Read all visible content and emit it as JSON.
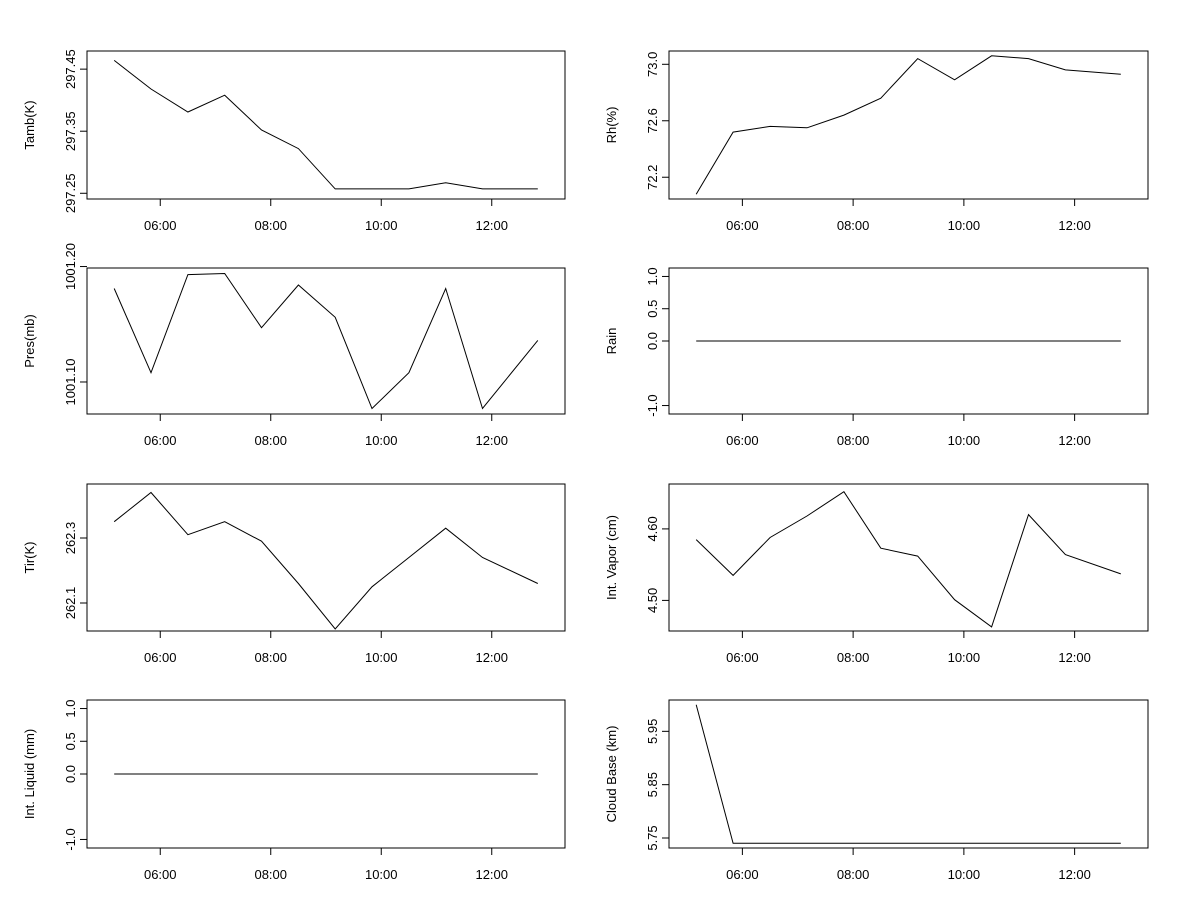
{
  "chart_data": [
    {
      "type": "line",
      "title": "",
      "xlabel": "",
      "ylabel": "Tamb(K)",
      "x": [
        "05:10",
        "05:50",
        "06:30",
        "07:10",
        "07:50",
        "08:30",
        "09:10",
        "09:50",
        "10:30",
        "11:10",
        "11:50",
        "12:50"
      ],
      "y": [
        297.464,
        297.418,
        297.381,
        297.408,
        297.352,
        297.322,
        297.257,
        297.257,
        297.257,
        297.267,
        297.257,
        297.257
      ],
      "x_ticks": [
        "06:00",
        "08:00",
        "10:00",
        "12:00"
      ],
      "y_ticks": [
        "297.25",
        "297.35",
        "297.45"
      ],
      "ylim": [
        297.244,
        297.476
      ],
      "grid": false
    },
    {
      "type": "line",
      "title": "",
      "xlabel": "",
      "ylabel": "Rh(%)",
      "x": [
        "05:10",
        "05:50",
        "06:30",
        "07:10",
        "07:50",
        "08:30",
        "09:10",
        "09:50",
        "10:30",
        "11:10",
        "11:50",
        "12:50"
      ],
      "y": [
        72.08,
        72.52,
        72.56,
        72.55,
        72.64,
        72.76,
        73.04,
        72.89,
        73.06,
        73.04,
        72.96,
        72.93
      ],
      "x_ticks": [
        "06:00",
        "08:00",
        "10:00",
        "12:00"
      ],
      "y_ticks": [
        "72.2",
        "72.6",
        "73.0"
      ],
      "ylim": [
        72.06,
        73.08
      ],
      "grid": false
    },
    {
      "type": "line",
      "title": "",
      "xlabel": "",
      "ylabel": "Pres(mb)",
      "x": [
        "05:10",
        "05:50",
        "06:30",
        "07:10",
        "07:50",
        "08:30",
        "09:10",
        "09:50",
        "10:30",
        "11:10",
        "11:50",
        "12:50"
      ],
      "y": [
        1001.181,
        1001.108,
        1001.193,
        1001.194,
        1001.147,
        1001.184,
        1001.156,
        1001.077,
        1001.108,
        1001.181,
        1001.077,
        1001.136
      ],
      "x_ticks": [
        "06:00",
        "08:00",
        "10:00",
        "12:00"
      ],
      "y_ticks": [
        "1001.10",
        "1001.20"
      ],
      "ylim": [
        1001.074,
        1001.197
      ],
      "grid": false
    },
    {
      "type": "line",
      "title": "",
      "xlabel": "",
      "ylabel": "Rain",
      "x": [
        "05:10",
        "12:50"
      ],
      "y": [
        0.0,
        0.0
      ],
      "x_ticks": [
        "06:00",
        "08:00",
        "10:00",
        "12:00"
      ],
      "y_ticks": [
        "-1.0",
        "0.0",
        "0.5",
        "1.0"
      ],
      "ylim": [
        -1.1,
        1.1
      ],
      "grid": false
    },
    {
      "type": "line",
      "title": "",
      "xlabel": "",
      "ylabel": "Tir(K)",
      "x": [
        "05:10",
        "05:50",
        "06:30",
        "07:10",
        "07:50",
        "08:30",
        "09:10",
        "09:50",
        "10:30",
        "11:10",
        "11:50",
        "12:50"
      ],
      "y": [
        262.35,
        262.44,
        262.31,
        262.35,
        262.29,
        262.16,
        262.02,
        262.15,
        262.24,
        262.33,
        262.24,
        262.16
      ],
      "x_ticks": [
        "06:00",
        "08:00",
        "10:00",
        "12:00"
      ],
      "y_ticks": [
        "262.1",
        "262.3"
      ],
      "ylim": [
        262.02,
        262.46
      ],
      "grid": false
    },
    {
      "type": "line",
      "title": "",
      "xlabel": "",
      "ylabel": "Int. Vapor (cm)",
      "x": [
        "05:10",
        "05:50",
        "06:30",
        "07:10",
        "07:50",
        "08:30",
        "09:10",
        "09:50",
        "10:30",
        "11:10",
        "11:50",
        "12:50"
      ],
      "y": [
        4.585,
        4.535,
        4.588,
        4.618,
        4.652,
        4.573,
        4.562,
        4.501,
        4.463,
        4.62,
        4.564,
        4.537
      ],
      "x_ticks": [
        "06:00",
        "08:00",
        "10:00",
        "12:00"
      ],
      "y_ticks": [
        "4.50",
        "4.60"
      ],
      "ylim": [
        4.46,
        4.66
      ],
      "grid": false
    },
    {
      "type": "line",
      "title": "",
      "xlabel": "",
      "ylabel": "Int. Liquid (mm)",
      "x": [
        "05:10",
        "12:50"
      ],
      "y": [
        0.0,
        0.0
      ],
      "x_ticks": [
        "06:00",
        "08:00",
        "10:00",
        "12:00"
      ],
      "y_ticks": [
        "-1.0",
        "0.0",
        "0.5",
        "1.0"
      ],
      "ylim": [
        -1.1,
        1.1
      ],
      "grid": false
    },
    {
      "type": "line",
      "title": "",
      "xlabel": "",
      "ylabel": "Cloud Base (km)",
      "x": [
        "05:10",
        "05:50",
        "06:30",
        "07:10",
        "07:50",
        "08:30",
        "09:10",
        "09:50",
        "10:30",
        "11:10",
        "11:50",
        "12:50"
      ],
      "y": [
        6.0,
        5.74,
        5.74,
        5.74,
        5.74,
        5.74,
        5.74,
        5.74,
        5.74,
        5.74,
        5.74,
        5.74
      ],
      "x_ticks": [
        "06:00",
        "08:00",
        "10:00",
        "12:00"
      ],
      "y_ticks": [
        "5.75",
        "5.85",
        "5.95"
      ],
      "ylim": [
        5.735,
        6.005
      ],
      "grid": false
    }
  ]
}
